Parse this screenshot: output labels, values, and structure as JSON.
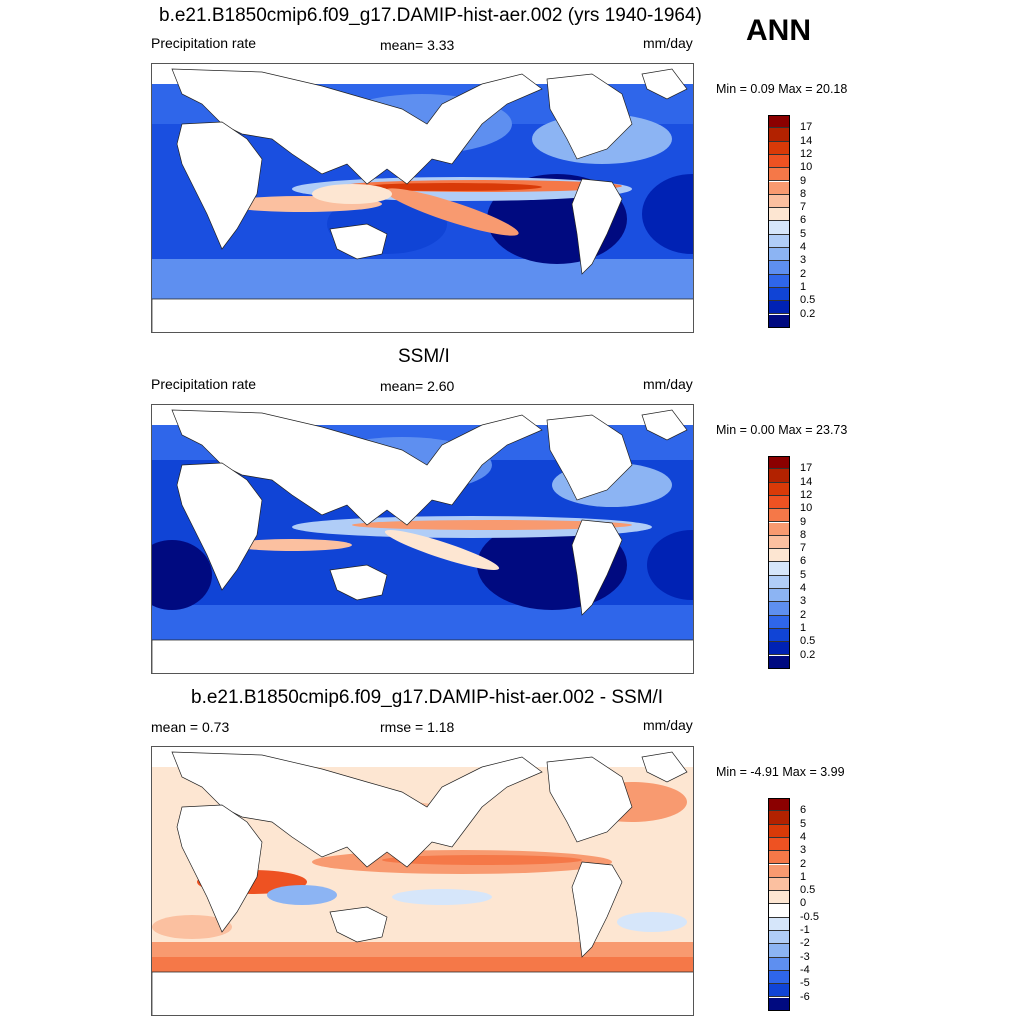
{
  "season": "ANN",
  "panels": [
    {
      "title": "b.e21.B1850cmip6.f09_g17.DAMIP-hist-aer.002 (yrs 1940-1964)",
      "left_text": "Precipitation rate",
      "center_text": "mean=   3.33",
      "units": "mm/day",
      "minmax": "Min =   0.09 Max =  20.18",
      "colorbar": {
        "labels": [
          "17",
          "14",
          "12",
          "10",
          "9",
          "8",
          "7",
          "6",
          "5",
          "4",
          "3",
          "2",
          "1",
          "0.5",
          "0.2"
        ],
        "colors": [
          "#8b0000",
          "#b22200",
          "#d93a08",
          "#ee5222",
          "#f57848",
          "#f89a70",
          "#fbc0a0",
          "#fde6d2",
          "#d6e6fa",
          "#b0cdf7",
          "#8cb4f3",
          "#5e8ff0",
          "#2f66ea",
          "#1044d6",
          "#0022b4",
          "#000a80"
        ]
      }
    },
    {
      "title": "SSM/I",
      "left_text": "Precipitation rate",
      "center_text": "mean=   2.60",
      "units": "mm/day",
      "minmax": "Min =   0.00 Max =  23.73",
      "colorbar": {
        "labels": [
          "17",
          "14",
          "12",
          "10",
          "9",
          "8",
          "7",
          "6",
          "5",
          "4",
          "3",
          "2",
          "1",
          "0.5",
          "0.2"
        ],
        "colors": [
          "#8b0000",
          "#b22200",
          "#d93a08",
          "#ee5222",
          "#f57848",
          "#f89a70",
          "#fbc0a0",
          "#fde6d2",
          "#d6e6fa",
          "#b0cdf7",
          "#8cb4f3",
          "#5e8ff0",
          "#2f66ea",
          "#1044d6",
          "#0022b4",
          "#000a80"
        ]
      }
    },
    {
      "title": "b.e21.B1850cmip6.f09_g17.DAMIP-hist-aer.002 - SSM/I",
      "left_text": "mean =   0.73",
      "center_text": "rmse =   1.18",
      "units": "mm/day",
      "minmax": "Min =  -4.91 Max =   3.99",
      "colorbar": {
        "labels": [
          "6",
          "5",
          "4",
          "3",
          "2",
          "1",
          "0.5",
          "0",
          "-0.5",
          "-1",
          "-2",
          "-3",
          "-4",
          "-5",
          "-6"
        ],
        "colors": [
          "#8b0000",
          "#b22200",
          "#d93a08",
          "#ee5222",
          "#f57848",
          "#f89a70",
          "#fbc0a0",
          "#fde6d2",
          "#ffffff",
          "#d6e6fa",
          "#b0cdf7",
          "#8cb4f3",
          "#5e8ff0",
          "#2f66ea",
          "#1044d6",
          "#000a80"
        ]
      }
    }
  ]
}
